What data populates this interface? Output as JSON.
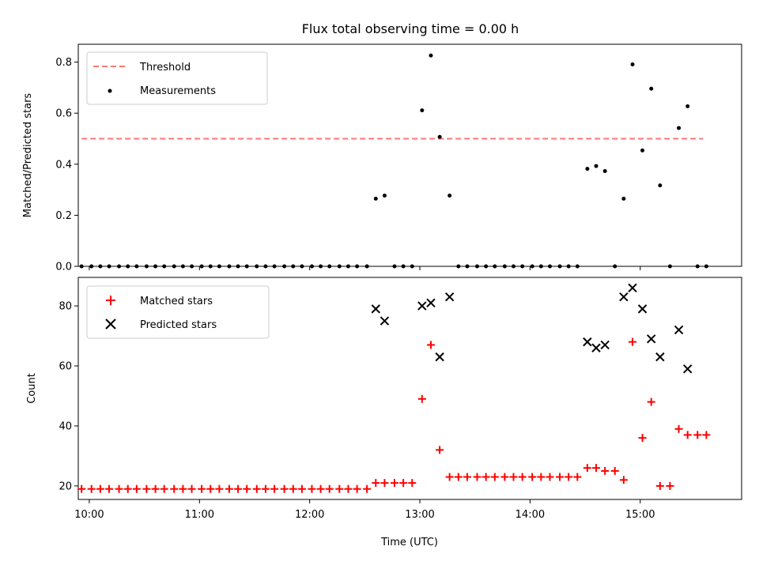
{
  "chart_data": [
    {
      "type": "scatter",
      "title": "Flux total observing time = 0.00 h",
      "ylabel": "Matched/Predicted stars",
      "xlabel": "",
      "xlim": [
        9.9,
        15.92
      ],
      "ylim": [
        0,
        0.87
      ],
      "yticks": [
        0.0,
        0.2,
        0.4,
        0.6,
        0.8
      ],
      "ytick_labels": [
        "0.0",
        "0.2",
        "0.4",
        "0.6",
        "0.8"
      ],
      "grid": false,
      "legend_position": "top-left",
      "series": [
        {
          "name": "Threshold",
          "kind": "dashed-line",
          "color": "#ff7777",
          "points": [
            [
              9.93,
              0.5
            ],
            [
              15.57,
              0.5
            ]
          ]
        },
        {
          "name": "Measurements",
          "kind": "dots",
          "color": "#000000",
          "points": [
            [
              9.93,
              0
            ],
            [
              10.02,
              0
            ],
            [
              10.1,
              0
            ],
            [
              10.18,
              0
            ],
            [
              10.27,
              0
            ],
            [
              10.35,
              0
            ],
            [
              10.43,
              0
            ],
            [
              10.52,
              0
            ],
            [
              10.6,
              0
            ],
            [
              10.68,
              0
            ],
            [
              10.77,
              0
            ],
            [
              10.85,
              0
            ],
            [
              10.93,
              0
            ],
            [
              11.02,
              0
            ],
            [
              11.1,
              0
            ],
            [
              11.18,
              0
            ],
            [
              11.27,
              0
            ],
            [
              11.35,
              0
            ],
            [
              11.43,
              0
            ],
            [
              11.52,
              0
            ],
            [
              11.6,
              0
            ],
            [
              11.68,
              0
            ],
            [
              11.77,
              0
            ],
            [
              11.85,
              0
            ],
            [
              11.93,
              0
            ],
            [
              12.02,
              0
            ],
            [
              12.1,
              0
            ],
            [
              12.18,
              0
            ],
            [
              12.27,
              0
            ],
            [
              12.35,
              0
            ],
            [
              12.43,
              0
            ],
            [
              12.52,
              0
            ],
            [
              12.6,
              0.265
            ],
            [
              12.68,
              0.277
            ],
            [
              12.77,
              0
            ],
            [
              12.85,
              0
            ],
            [
              12.93,
              0
            ],
            [
              13.02,
              0.611
            ],
            [
              13.1,
              0.826
            ],
            [
              13.18,
              0.507
            ],
            [
              13.27,
              0.277
            ],
            [
              13.35,
              0
            ],
            [
              13.43,
              0
            ],
            [
              13.52,
              0
            ],
            [
              13.6,
              0
            ],
            [
              13.68,
              0
            ],
            [
              13.77,
              0
            ],
            [
              13.85,
              0
            ],
            [
              13.93,
              0
            ],
            [
              14.02,
              0
            ],
            [
              14.1,
              0
            ],
            [
              14.18,
              0
            ],
            [
              14.27,
              0
            ],
            [
              14.35,
              0
            ],
            [
              14.43,
              0
            ],
            [
              14.52,
              0.382
            ],
            [
              14.6,
              0.393
            ],
            [
              14.68,
              0.373
            ],
            [
              14.77,
              0
            ],
            [
              14.85,
              0.265
            ],
            [
              14.93,
              0.791
            ],
            [
              15.02,
              0.454
            ],
            [
              15.1,
              0.696
            ],
            [
              15.18,
              0.317
            ],
            [
              15.27,
              0
            ],
            [
              15.35,
              0.542
            ],
            [
              15.43,
              0.627
            ],
            [
              15.52,
              0
            ],
            [
              15.6,
              0
            ]
          ]
        }
      ]
    },
    {
      "type": "scatter",
      "title": "",
      "ylabel": "Count",
      "xlabel": "Time (UTC)",
      "xlim": [
        9.9,
        15.92
      ],
      "ylim": [
        15.5,
        89.5
      ],
      "xticks": [
        10,
        11,
        12,
        13,
        14,
        15
      ],
      "xtick_labels": [
        "10:00",
        "11:00",
        "12:00",
        "13:00",
        "14:00",
        "15:00"
      ],
      "yticks": [
        20,
        40,
        60,
        80
      ],
      "ytick_labels": [
        "20",
        "40",
        "60",
        "80"
      ],
      "grid": false,
      "legend_position": "top-left",
      "series": [
        {
          "name": "Matched stars",
          "kind": "plus",
          "color": "#ff0000",
          "points": [
            [
              9.93,
              19
            ],
            [
              10.02,
              19
            ],
            [
              10.1,
              19
            ],
            [
              10.18,
              19
            ],
            [
              10.27,
              19
            ],
            [
              10.35,
              19
            ],
            [
              10.43,
              19
            ],
            [
              10.52,
              19
            ],
            [
              10.6,
              19
            ],
            [
              10.68,
              19
            ],
            [
              10.77,
              19
            ],
            [
              10.85,
              19
            ],
            [
              10.93,
              19
            ],
            [
              11.02,
              19
            ],
            [
              11.1,
              19
            ],
            [
              11.18,
              19
            ],
            [
              11.27,
              19
            ],
            [
              11.35,
              19
            ],
            [
              11.43,
              19
            ],
            [
              11.52,
              19
            ],
            [
              11.6,
              19
            ],
            [
              11.68,
              19
            ],
            [
              11.77,
              19
            ],
            [
              11.85,
              19
            ],
            [
              11.93,
              19
            ],
            [
              12.02,
              19
            ],
            [
              12.1,
              19
            ],
            [
              12.18,
              19
            ],
            [
              12.27,
              19
            ],
            [
              12.35,
              19
            ],
            [
              12.43,
              19
            ],
            [
              12.52,
              19
            ],
            [
              12.6,
              21
            ],
            [
              12.68,
              21
            ],
            [
              12.77,
              21
            ],
            [
              12.85,
              21
            ],
            [
              12.93,
              21
            ],
            [
              13.02,
              49
            ],
            [
              13.1,
              67
            ],
            [
              13.18,
              32
            ],
            [
              13.27,
              23
            ],
            [
              13.35,
              23
            ],
            [
              13.43,
              23
            ],
            [
              13.52,
              23
            ],
            [
              13.6,
              23
            ],
            [
              13.68,
              23
            ],
            [
              13.77,
              23
            ],
            [
              13.85,
              23
            ],
            [
              13.93,
              23
            ],
            [
              14.02,
              23
            ],
            [
              14.1,
              23
            ],
            [
              14.18,
              23
            ],
            [
              14.27,
              23
            ],
            [
              14.35,
              23
            ],
            [
              14.43,
              23
            ],
            [
              14.52,
              26
            ],
            [
              14.6,
              26
            ],
            [
              14.68,
              25
            ],
            [
              14.77,
              25
            ],
            [
              14.85,
              22
            ],
            [
              14.93,
              68
            ],
            [
              15.02,
              36
            ],
            [
              15.1,
              48
            ],
            [
              15.18,
              20
            ],
            [
              15.27,
              20
            ],
            [
              15.35,
              39
            ],
            [
              15.43,
              37
            ],
            [
              15.52,
              37
            ],
            [
              15.6,
              37
            ]
          ]
        },
        {
          "name": "Predicted stars",
          "kind": "x",
          "color": "#000000",
          "points": [
            [
              12.6,
              79
            ],
            [
              12.68,
              75
            ],
            [
              13.02,
              80
            ],
            [
              13.1,
              81
            ],
            [
              13.18,
              63
            ],
            [
              13.27,
              83
            ],
            [
              14.52,
              68
            ],
            [
              14.6,
              66
            ],
            [
              14.68,
              67
            ],
            [
              14.85,
              83
            ],
            [
              14.93,
              86
            ],
            [
              15.02,
              79
            ],
            [
              15.1,
              69
            ],
            [
              15.18,
              63
            ],
            [
              15.35,
              72
            ],
            [
              15.43,
              59
            ]
          ]
        }
      ]
    }
  ]
}
